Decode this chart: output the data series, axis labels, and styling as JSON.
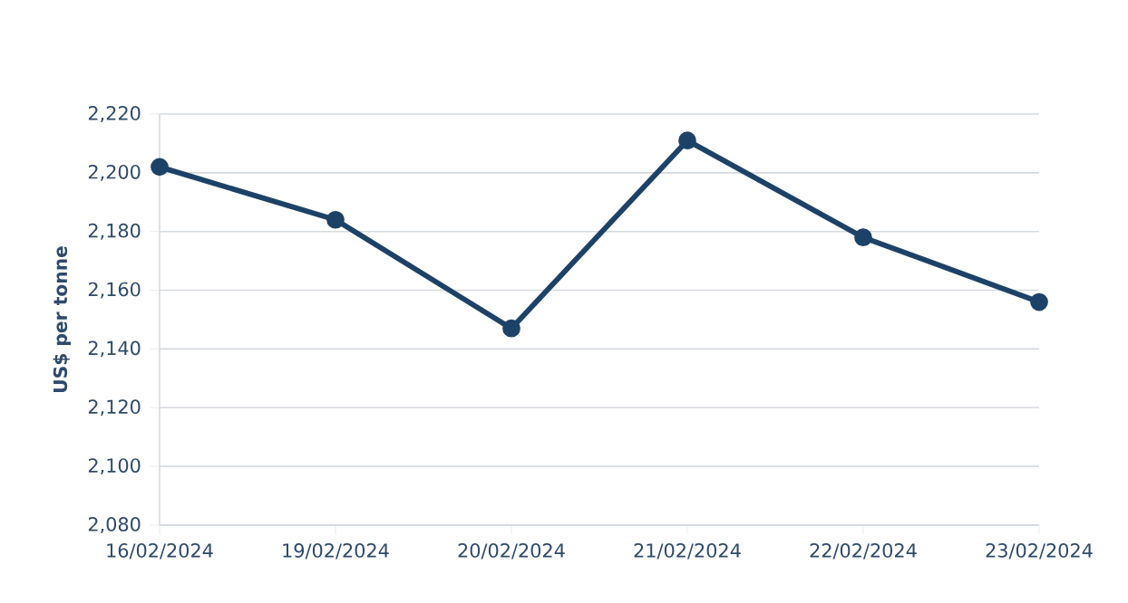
{
  "chart_data": {
    "type": "line",
    "ylabel": "US$ per tonne",
    "categories": [
      "16/02/2024",
      "19/02/2024",
      "20/02/2024",
      "21/02/2024",
      "22/02/2024",
      "23/02/2024"
    ],
    "series": [
      {
        "color": "#1d4268",
        "values": [
          2202,
          2184,
          2147,
          2211,
          2178,
          2156
        ]
      }
    ],
    "ylim": [
      2080,
      2220
    ],
    "yticks": [
      {
        "value": 2080,
        "label": "2,080"
      },
      {
        "value": 2100,
        "label": "2,100"
      },
      {
        "value": 2120,
        "label": "2,120"
      },
      {
        "value": 2140,
        "label": "2,140"
      },
      {
        "value": 2160,
        "label": "2,160"
      },
      {
        "value": 2180,
        "label": "2,180"
      },
      {
        "value": 2200,
        "label": "2,200"
      },
      {
        "value": 2220,
        "label": "2,220"
      }
    ],
    "grid": "y",
    "marker": "circle",
    "line_style": "solid"
  }
}
